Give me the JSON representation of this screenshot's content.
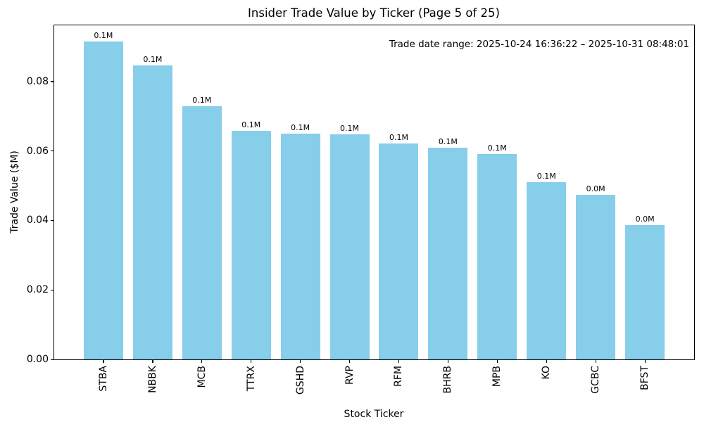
{
  "chart_data": {
    "type": "bar",
    "title": "Insider Trade Value by Ticker (Page 5 of 25)",
    "xlabel": "Stock Ticker",
    "ylabel": "Trade Value ($M)",
    "annotation": "Trade date range: 2025-10-24 16:36:22 – 2025-10-31 08:48:01",
    "categories": [
      "STBA",
      "NBBK",
      "MCB",
      "TTRX",
      "GSHD",
      "RVP",
      "RFM",
      "BHRB",
      "MPB",
      "KO",
      "GCBC",
      "BFST"
    ],
    "values": [
      0.0916,
      0.0847,
      0.073,
      0.0659,
      0.065,
      0.0649,
      0.0621,
      0.0609,
      0.0592,
      0.051,
      0.0474,
      0.0387
    ],
    "bar_labels": [
      "0.1M",
      "0.1M",
      "0.1M",
      "0.1M",
      "0.1M",
      "0.1M",
      "0.1M",
      "0.1M",
      "0.1M",
      "0.1M",
      "0.0M",
      "0.0M"
    ],
    "ytick_labels": [
      "0.00",
      "0.02",
      "0.04",
      "0.06",
      "0.08"
    ],
    "ylim": [
      0,
      0.0962
    ],
    "bar_color": "#87CEEB",
    "text_color": "#000000",
    "background_color": "#FFFFFF",
    "grid": false,
    "legend_position": "none"
  }
}
